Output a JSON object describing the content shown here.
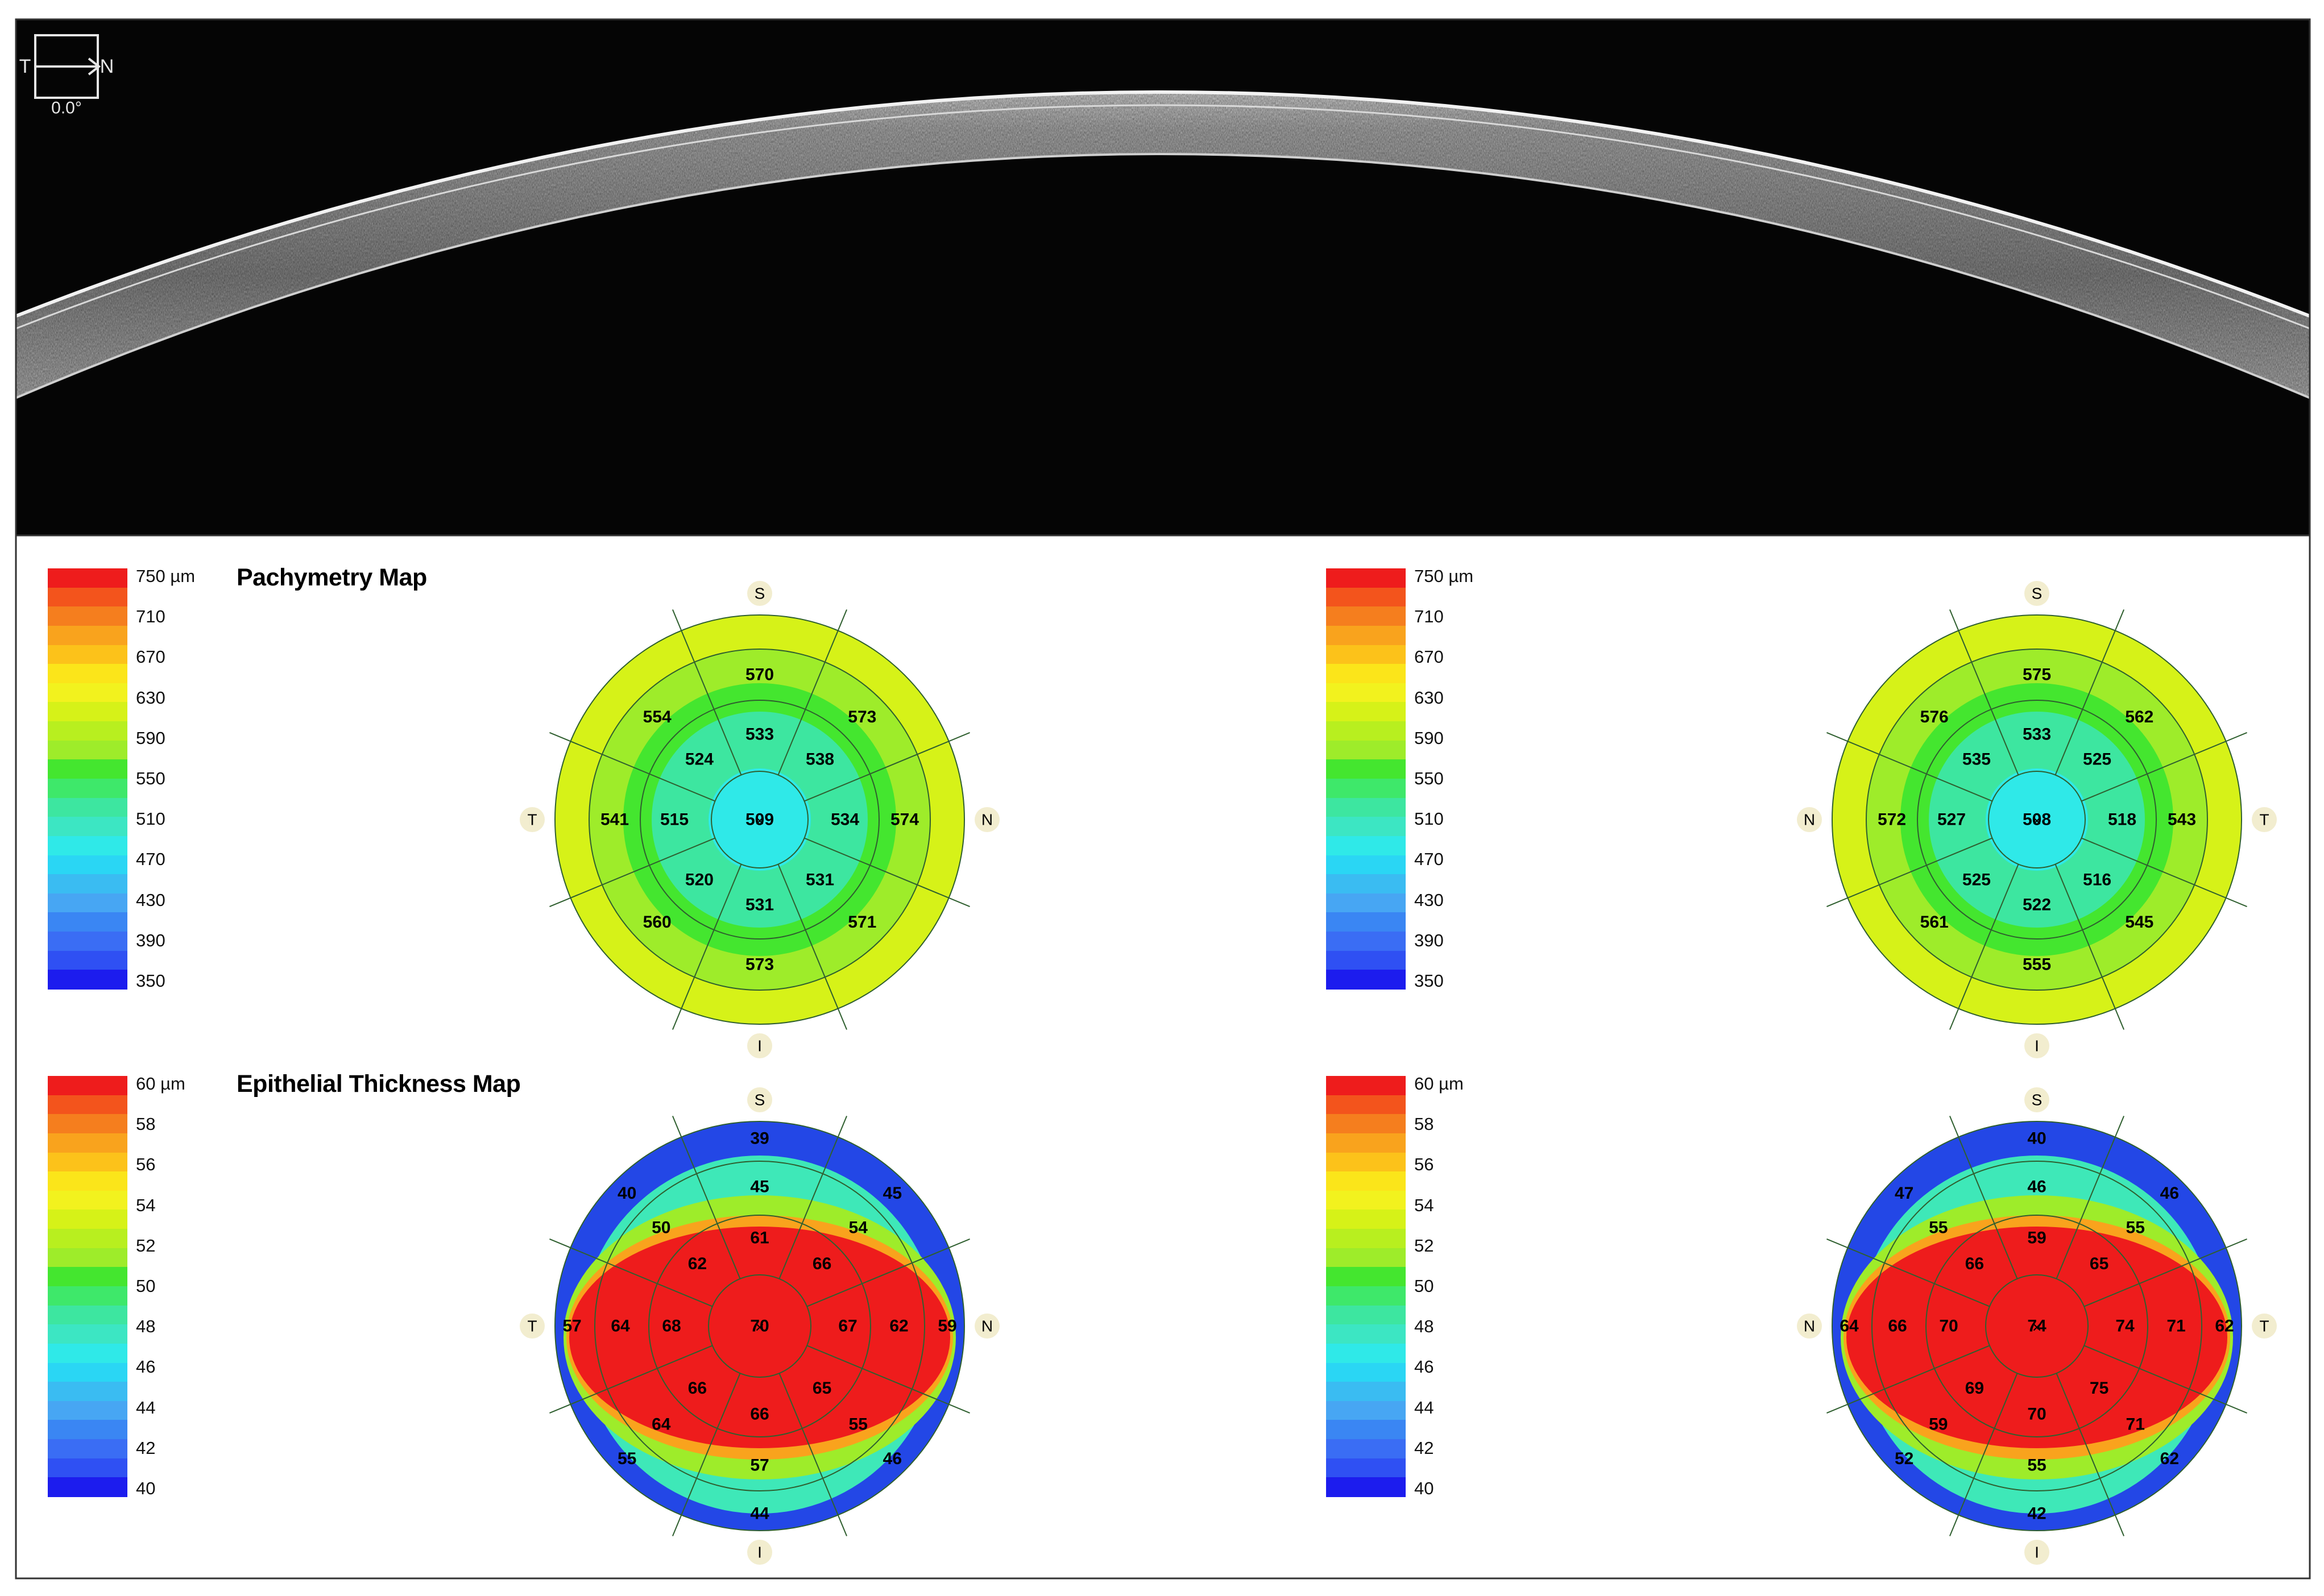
{
  "oct": {
    "orientation_left": "T",
    "orientation_right": "N",
    "angle": "0.0°"
  },
  "pachymetry": {
    "title": "Pachymetry Map",
    "scale_labels": [
      "750 µm",
      "710",
      "670",
      "630",
      "590",
      "550",
      "510",
      "470",
      "430",
      "390",
      "350"
    ],
    "scale_colors": [
      "#ee1c1c",
      "#f3541c",
      "#f57e1e",
      "#f9a31d",
      "#fcc21a",
      "#fbe51a",
      "#f2f21e",
      "#d6f218",
      "#b8ef1f",
      "#9eec2a",
      "#44e62f",
      "#3ee86a",
      "#3de6a0",
      "#3ce6c3",
      "#2fe9e8",
      "#2ad6f4",
      "#3abcf2",
      "#47a6f3",
      "#3a86f3",
      "#3a6df4",
      "#2f50f3",
      "#1c1cee"
    ],
    "left": {
      "orient": {
        "top": "S",
        "bottom": "I",
        "left": "T",
        "right": "N"
      },
      "center": "509",
      "inner": [
        "533",
        "538",
        "534",
        "531",
        "531",
        "520",
        "515",
        "524"
      ],
      "outer": [
        "570",
        "573",
        "574",
        "571",
        "573",
        "560",
        "541",
        "554"
      ]
    },
    "right": {
      "orient": {
        "top": "S",
        "bottom": "I",
        "left": "N",
        "right": "T"
      },
      "center": "508",
      "inner": [
        "533",
        "525",
        "518",
        "516",
        "522",
        "525",
        "527",
        "535"
      ],
      "outer": [
        "575",
        "562",
        "543",
        "545",
        "555",
        "561",
        "572",
        "576"
      ]
    }
  },
  "epithelial": {
    "title": "Epithelial Thickness Map",
    "scale_labels": [
      "60 µm",
      "58",
      "56",
      "54",
      "52",
      "50",
      "48",
      "46",
      "44",
      "42",
      "40"
    ],
    "scale_colors": [
      "#ee1c1c",
      "#f3541c",
      "#f57e1e",
      "#f9a31d",
      "#fcc21a",
      "#fbe51a",
      "#f2f21e",
      "#d6f218",
      "#b8ef1f",
      "#9eec2a",
      "#44e62f",
      "#3ee86a",
      "#3de6a0",
      "#3ce6c3",
      "#2fe9e8",
      "#2ad6f4",
      "#3abcf2",
      "#47a6f3",
      "#3a86f3",
      "#3a6df4",
      "#2f50f3",
      "#1c1cee"
    ],
    "left": {
      "orient": {
        "top": "S",
        "bottom": "I",
        "left": "T",
        "right": "N"
      },
      "center": "70",
      "r1": [
        "61",
        "66",
        "67",
        "65",
        "66",
        "66",
        "68",
        "62"
      ],
      "r2": [
        "45",
        "54",
        "62",
        "55",
        "57",
        "64",
        "64",
        "50"
      ],
      "r3": [
        "39",
        "45",
        "59",
        "46",
        "44",
        "55",
        "57",
        "40"
      ]
    },
    "right": {
      "orient": {
        "top": "S",
        "bottom": "I",
        "left": "N",
        "right": "T"
      },
      "center": "74",
      "r1": [
        "59",
        "65",
        "74",
        "75",
        "70",
        "69",
        "70",
        "66"
      ],
      "r2": [
        "46",
        "55",
        "71",
        "71",
        "55",
        "59",
        "66",
        "55"
      ],
      "r3": [
        "40",
        "46",
        "62",
        "62",
        "42",
        "52",
        "64",
        "47"
      ]
    }
  }
}
